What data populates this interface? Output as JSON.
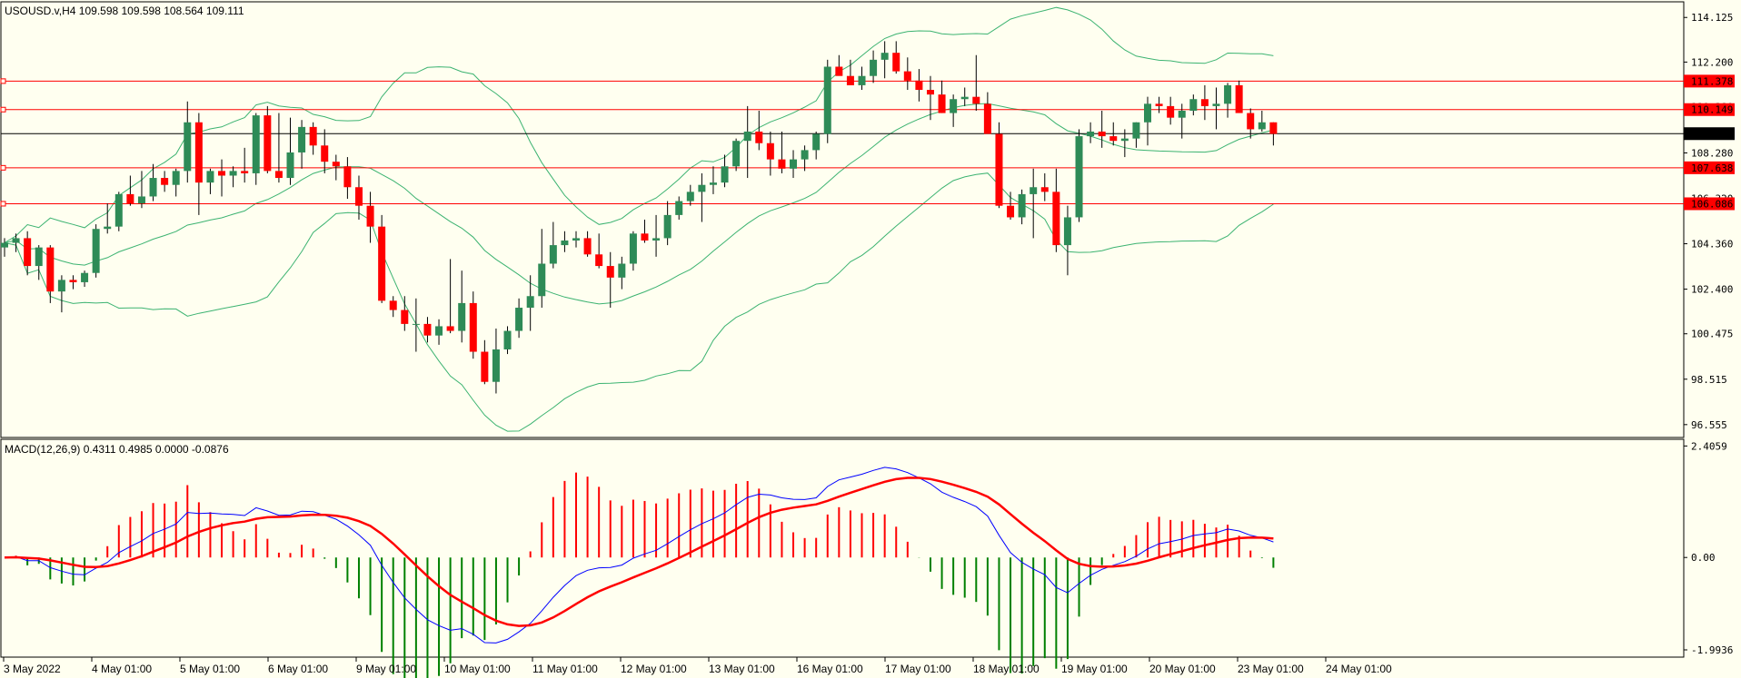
{
  "chart_data": {
    "type": "candlestick",
    "symbol_header": "USOUSD.v,H4  109.598 109.598 108.564 109.111",
    "price_axis": {
      "ylim": [
        96.0,
        114.8
      ],
      "ticks": [
        "114.125",
        "112.200",
        "110.280",
        "108.280",
        "106.320",
        "104.360",
        "102.400",
        "100.475",
        "98.515",
        "96.555"
      ]
    },
    "horizontal_levels": [
      {
        "label": "111.378",
        "value": 111.378,
        "color": "#ff0000"
      },
      {
        "label": "110.149",
        "value": 110.149,
        "color": "#ff0000"
      },
      {
        "label": "109.111",
        "value": 109.111,
        "color": "#000000"
      },
      {
        "label": "107.638",
        "value": 107.638,
        "color": "#ff0000"
      },
      {
        "label": "106.086",
        "value": 106.086,
        "color": "#ff0000"
      }
    ],
    "time_axis": [
      "3 May 2022",
      "4 May 01:00",
      "5 May 01:00",
      "6 May 01:00",
      "9 May 01:00",
      "10 May 01:00",
      "11 May 01:00",
      "12 May 01:00",
      "13 May 01:00",
      "16 May 01:00",
      "17 May 01:00",
      "18 May 01:00",
      "19 May 01:00",
      "20 May 01:00",
      "23 May 01:00",
      "24 May 01:00"
    ],
    "candles_ohlc": [
      [
        104.2,
        104.6,
        103.8,
        104.4
      ],
      [
        104.4,
        104.8,
        104.0,
        104.6
      ],
      [
        104.6,
        104.9,
        103.0,
        103.4
      ],
      [
        103.4,
        104.3,
        102.8,
        104.2
      ],
      [
        104.2,
        104.3,
        101.8,
        102.3
      ],
      [
        102.3,
        103.0,
        101.4,
        102.8
      ],
      [
        102.8,
        103.0,
        102.4,
        102.7
      ],
      [
        102.7,
        103.2,
        102.5,
        103.1
      ],
      [
        103.1,
        105.2,
        102.9,
        105.0
      ],
      [
        105.0,
        106.1,
        104.8,
        105.1
      ],
      [
        105.1,
        106.6,
        104.9,
        106.5
      ],
      [
        106.5,
        107.3,
        106.0,
        106.1
      ],
      [
        106.1,
        107.5,
        105.9,
        106.4
      ],
      [
        106.4,
        107.8,
        106.2,
        107.2
      ],
      [
        107.2,
        107.5,
        106.6,
        106.9
      ],
      [
        106.9,
        107.6,
        106.4,
        107.5
      ],
      [
        107.5,
        110.5,
        107.0,
        109.6
      ],
      [
        109.6,
        110.0,
        105.6,
        107.0
      ],
      [
        107.0,
        107.6,
        106.5,
        107.5
      ],
      [
        107.5,
        108.0,
        106.4,
        107.3
      ],
      [
        107.3,
        107.7,
        106.8,
        107.5
      ],
      [
        107.5,
        108.5,
        107.0,
        107.4
      ],
      [
        107.4,
        110.0,
        106.9,
        109.9
      ],
      [
        109.9,
        110.3,
        107.4,
        107.5
      ],
      [
        107.5,
        110.0,
        107.0,
        107.2
      ],
      [
        107.2,
        109.8,
        106.9,
        108.3
      ],
      [
        108.3,
        109.7,
        107.6,
        109.4
      ],
      [
        109.4,
        109.6,
        108.2,
        108.6
      ],
      [
        108.6,
        109.3,
        107.4,
        107.9
      ],
      [
        107.9,
        108.2,
        107.1,
        107.7
      ],
      [
        107.7,
        108.1,
        106.3,
        106.8
      ],
      [
        106.8,
        107.3,
        105.4,
        106.0
      ],
      [
        106.0,
        106.6,
        104.4,
        105.1
      ],
      [
        105.1,
        105.6,
        101.8,
        101.9
      ],
      [
        101.9,
        102.1,
        101.2,
        101.5
      ],
      [
        101.5,
        102.1,
        100.6,
        100.9
      ],
      [
        100.9,
        102.0,
        99.7,
        100.9
      ],
      [
        100.9,
        101.2,
        100.1,
        100.4
      ],
      [
        100.4,
        101.1,
        100.0,
        100.8
      ],
      [
        100.8,
        103.7,
        100.5,
        100.6
      ],
      [
        100.6,
        103.2,
        100.1,
        101.8
      ],
      [
        101.8,
        102.3,
        99.4,
        99.7
      ],
      [
        99.7,
        100.2,
        98.3,
        98.4
      ],
      [
        98.4,
        100.7,
        97.9,
        99.8
      ],
      [
        99.8,
        100.8,
        99.6,
        100.6
      ],
      [
        100.6,
        102.0,
        100.3,
        101.6
      ],
      [
        101.6,
        103.0,
        100.6,
        102.1
      ],
      [
        102.1,
        105.0,
        101.6,
        103.5
      ],
      [
        103.5,
        105.3,
        103.3,
        104.3
      ],
      [
        104.3,
        104.9,
        104.0,
        104.5
      ],
      [
        104.5,
        104.9,
        104.2,
        104.6
      ],
      [
        104.6,
        104.9,
        103.8,
        103.9
      ],
      [
        103.9,
        104.8,
        103.3,
        103.4
      ],
      [
        103.4,
        104.0,
        101.6,
        102.9
      ],
      [
        102.9,
        103.8,
        102.4,
        103.5
      ],
      [
        103.5,
        104.9,
        103.2,
        104.8
      ],
      [
        104.8,
        105.4,
        104.4,
        104.5
      ],
      [
        104.5,
        105.6,
        103.8,
        104.6
      ],
      [
        104.6,
        106.2,
        104.3,
        105.6
      ],
      [
        105.6,
        106.4,
        105.4,
        106.2
      ],
      [
        106.2,
        106.9,
        106.0,
        106.6
      ],
      [
        106.6,
        107.4,
        105.3,
        106.9
      ],
      [
        106.9,
        107.7,
        106.5,
        107.0
      ],
      [
        107.0,
        108.2,
        106.8,
        107.7
      ],
      [
        107.7,
        108.9,
        107.5,
        108.8
      ],
      [
        108.8,
        110.3,
        107.2,
        109.2
      ],
      [
        109.2,
        110.1,
        108.4,
        108.7
      ],
      [
        108.7,
        109.2,
        107.3,
        108.0
      ],
      [
        108.0,
        109.2,
        107.4,
        107.6
      ],
      [
        107.6,
        108.4,
        107.2,
        108.0
      ],
      [
        108.0,
        108.6,
        107.5,
        108.4
      ],
      [
        108.4,
        109.2,
        108.0,
        109.1
      ],
      [
        109.1,
        112.3,
        108.7,
        112.0
      ],
      [
        112.0,
        112.5,
        111.8,
        111.6
      ],
      [
        111.6,
        112.3,
        111.3,
        111.2
      ],
      [
        111.2,
        112.0,
        111.0,
        111.6
      ],
      [
        111.6,
        112.7,
        111.3,
        112.3
      ],
      [
        112.3,
        113.1,
        111.5,
        112.6
      ],
      [
        112.6,
        113.1,
        111.7,
        111.8
      ],
      [
        111.8,
        112.4,
        111.0,
        111.4
      ],
      [
        111.4,
        111.9,
        110.5,
        111.0
      ],
      [
        111.0,
        111.6,
        109.7,
        110.8
      ],
      [
        110.8,
        111.4,
        110.0,
        110.0
      ],
      [
        110.0,
        110.8,
        109.4,
        110.6
      ],
      [
        110.6,
        111.1,
        110.3,
        110.7
      ],
      [
        110.7,
        112.5,
        110.1,
        110.4
      ],
      [
        110.4,
        110.9,
        109.2,
        109.1
      ],
      [
        109.1,
        109.6,
        105.9,
        106.0
      ],
      [
        106.0,
        106.6,
        105.4,
        105.5
      ],
      [
        105.5,
        106.7,
        105.2,
        106.5
      ],
      [
        106.5,
        107.6,
        104.6,
        106.8
      ],
      [
        106.8,
        107.4,
        106.2,
        106.6
      ],
      [
        106.6,
        107.6,
        104.0,
        104.3
      ],
      [
        104.3,
        106.0,
        103.0,
        105.5
      ],
      [
        105.5,
        109.3,
        105.3,
        109.0
      ],
      [
        109.0,
        109.6,
        108.7,
        109.2
      ],
      [
        109.2,
        110.1,
        108.5,
        109.0
      ],
      [
        109.0,
        109.6,
        108.6,
        108.8
      ],
      [
        108.8,
        109.3,
        108.1,
        108.9
      ],
      [
        108.9,
        109.6,
        108.5,
        109.6
      ],
      [
        109.6,
        110.7,
        108.6,
        110.4
      ],
      [
        110.4,
        110.7,
        110.0,
        110.3
      ],
      [
        110.3,
        110.7,
        109.5,
        109.8
      ],
      [
        109.8,
        110.4,
        108.9,
        110.1
      ],
      [
        110.1,
        110.8,
        109.9,
        110.6
      ],
      [
        110.6,
        111.2,
        109.7,
        110.3
      ],
      [
        110.3,
        111.1,
        109.3,
        110.4
      ],
      [
        110.4,
        111.3,
        109.8,
        111.2
      ],
      [
        111.2,
        111.4,
        110.4,
        110.0
      ],
      [
        110.0,
        110.2,
        108.9,
        109.3
      ],
      [
        109.3,
        110.1,
        109.2,
        109.6
      ],
      [
        109.6,
        109.6,
        108.6,
        109.1
      ]
    ],
    "macd_panel": {
      "header": "MACD(12,26,9) 0.4311 0.4985 0.0000 -0.0876",
      "ylim": [
        -2.15,
        2.55
      ],
      "ticks": [
        "2.4059",
        "0.00",
        "-1.9936"
      ]
    }
  },
  "colors": {
    "background": "#fffff0",
    "bull": "#2e8b57",
    "bear": "#ff0000",
    "band": "#3cb371",
    "macd_line": "#0000ff",
    "signal_line": "#ff0000",
    "hist_pos": "#ff0000",
    "hist_neg": "#008000"
  }
}
